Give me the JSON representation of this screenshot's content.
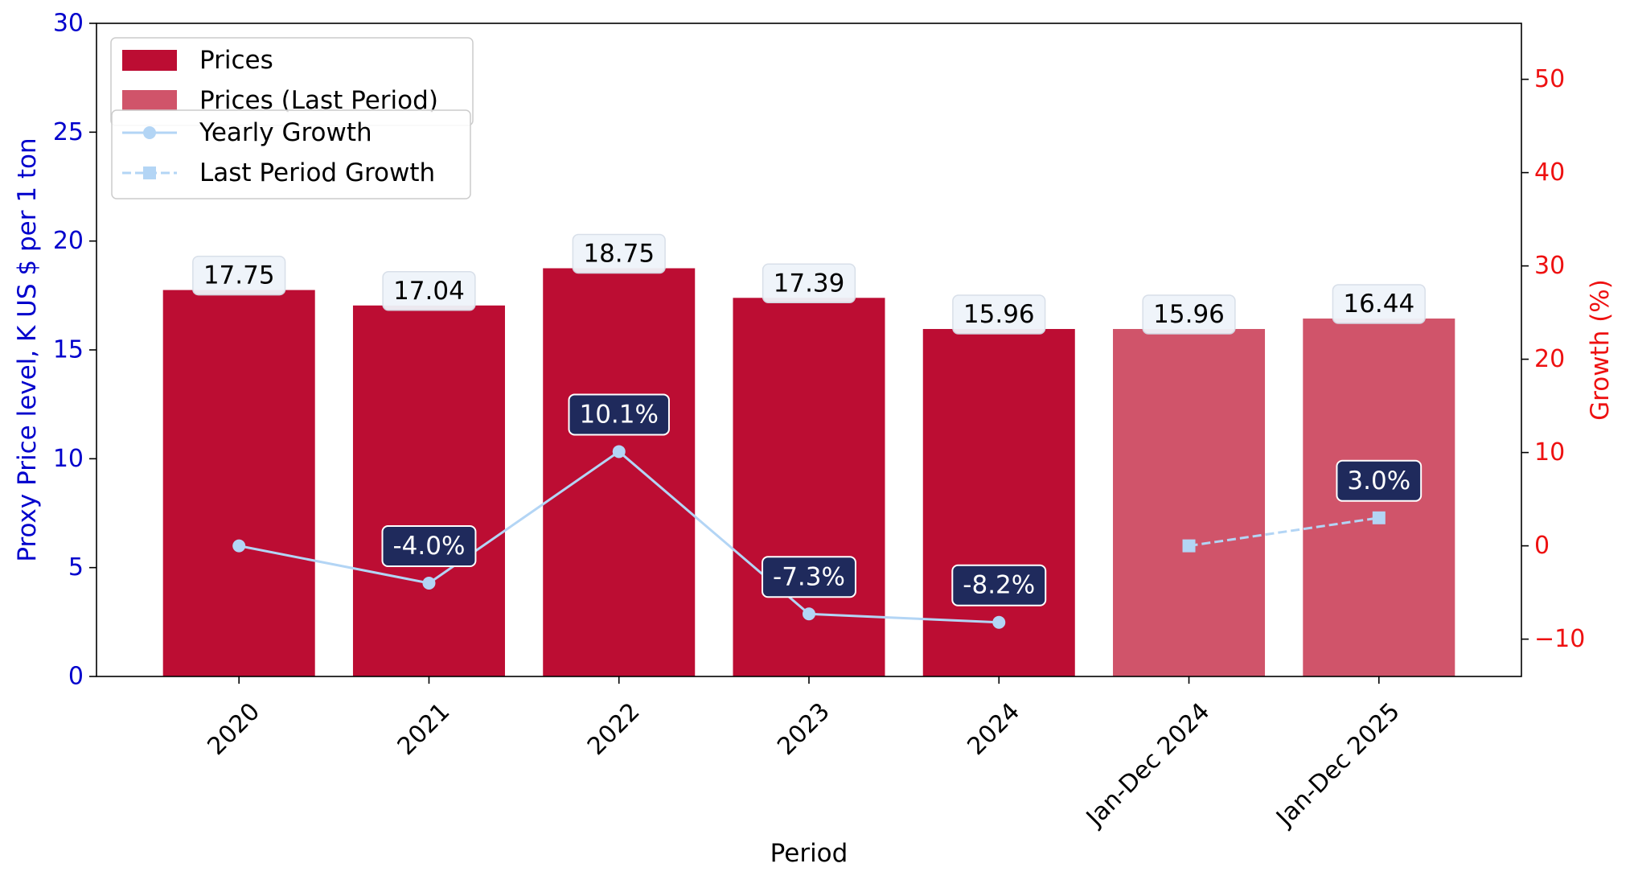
{
  "chart_data": {
    "type": "bar",
    "xlabel": "Period",
    "ylabel_left": "Proxy Price level, K US $ per 1 ton",
    "ylabel_right": "Growth (%)",
    "categories": [
      "2020",
      "2021",
      "2022",
      "2023",
      "2024",
      "Jan-Dec 2024",
      "Jan-Dec 2025"
    ],
    "ylim_left": [
      0,
      30
    ],
    "yticks_left": [
      0,
      5,
      10,
      15,
      20,
      25,
      30
    ],
    "ylim_right": [
      -14,
      56
    ],
    "yticks_right": [
      -10,
      0,
      10,
      20,
      30,
      40,
      50
    ],
    "grid": false,
    "legend_placement": "top-left",
    "bar_series": [
      {
        "name": "Prices",
        "color": "#BC0D33",
        "indices": [
          0,
          1,
          2,
          3,
          4
        ],
        "values": [
          17.75,
          17.04,
          18.75,
          17.39,
          15.96
        ],
        "labels": [
          "17.75",
          "17.04",
          "18.75",
          "17.39",
          "15.96"
        ]
      },
      {
        "name": "Prices (Last Period)",
        "color": "#D0546A",
        "indices": [
          5,
          6
        ],
        "values": [
          15.96,
          16.44
        ],
        "labels": [
          "15.96",
          "16.44"
        ]
      }
    ],
    "line_series": [
      {
        "name": "Yearly Growth",
        "color": "#B3D5F5",
        "style": "solid",
        "marker": "circle",
        "indices": [
          0,
          1,
          2,
          3,
          4
        ],
        "values": [
          0,
          -4.0,
          10.1,
          -7.3,
          -8.2
        ],
        "labels": [
          "",
          "-4.0%",
          "10.1%",
          "-7.3%",
          "-8.2%"
        ]
      },
      {
        "name": "Last Period Growth",
        "color": "#B3D5F5",
        "style": "dashed",
        "marker": "square",
        "indices": [
          5,
          6
        ],
        "values": [
          0,
          3.0
        ],
        "labels": [
          "",
          "3.0%"
        ]
      }
    ],
    "colors": {
      "left_axis": "#0000CC",
      "right_axis": "#EE1111",
      "growth_label_bg": "#1F2A5C",
      "value_label_bg": "#EFF4FA"
    }
  }
}
